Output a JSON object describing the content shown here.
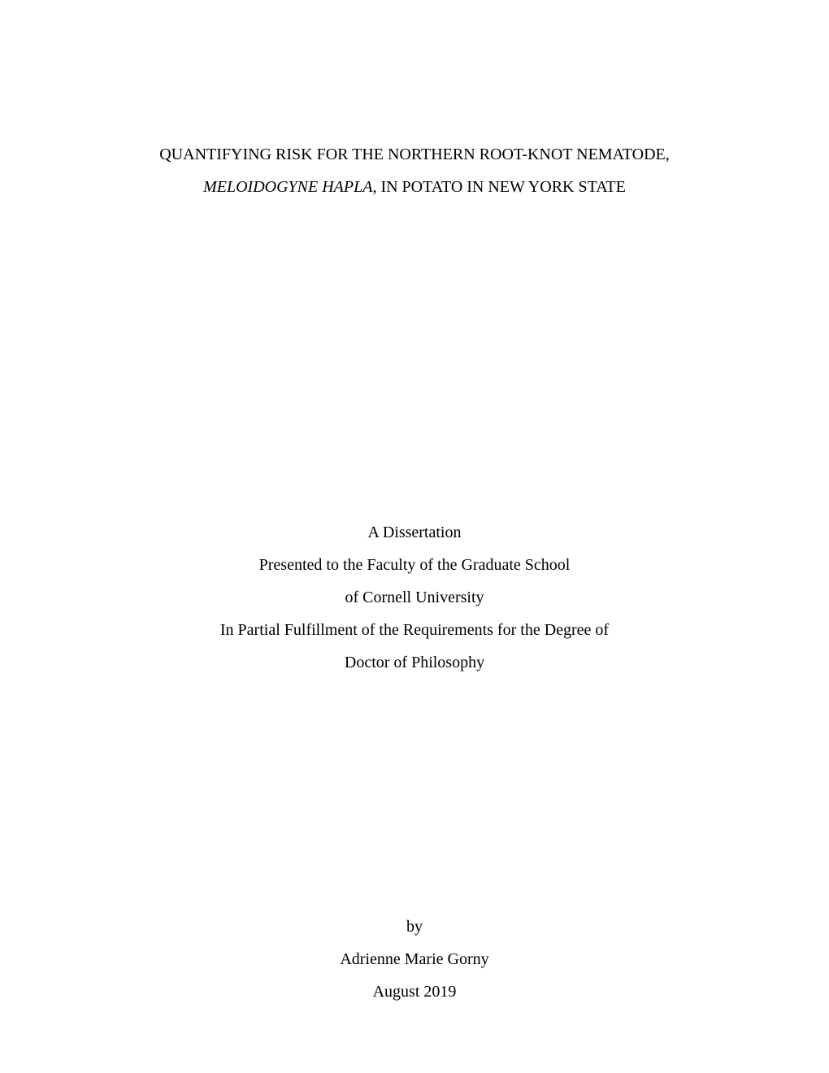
{
  "document": {
    "background_color": "#ffffff",
    "text_color": "#000000",
    "font_family": "Times New Roman",
    "font_size_pt": 15,
    "title": {
      "line1_before_italic": "QUANTIFYING RISK FOR THE NORTHERN ROOT-KNOT NEMATODE,",
      "line2_italic": "MELOIDOGYNE HAPLA",
      "line2_after_italic": ", IN POTATO IN NEW YORK STATE"
    },
    "dissertation": {
      "line1": "A Dissertation",
      "line2": "Presented to the Faculty of the Graduate School",
      "line3": "of Cornell University",
      "line4": "In Partial Fulfillment of the Requirements for the Degree of",
      "line5": "Doctor of Philosophy"
    },
    "author": {
      "by_label": "by",
      "name": "Adrienne Marie Gorny",
      "date": "August 2019"
    }
  }
}
